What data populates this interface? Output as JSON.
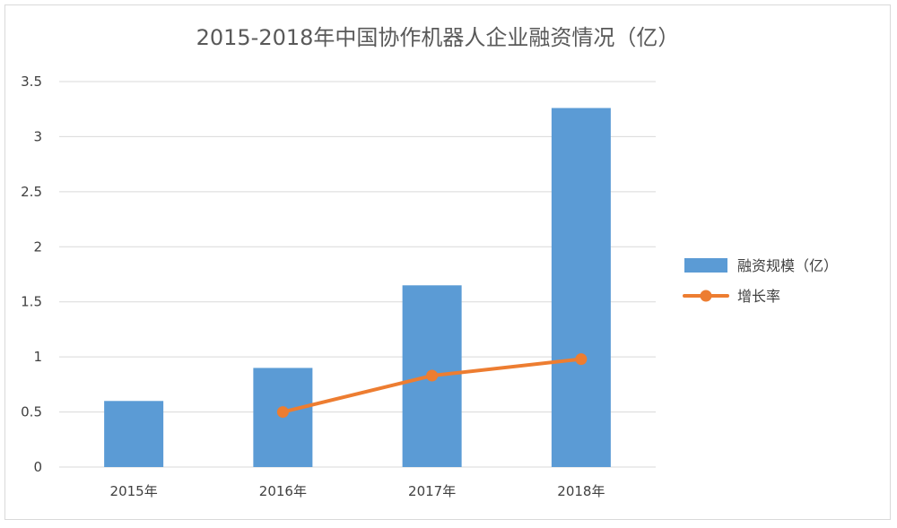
{
  "chart_data": {
    "type": "bar",
    "title": "2015-2018年中国协作机器人企业融资情况（亿）",
    "categories": [
      "2015年",
      "2016年",
      "2017年",
      "2018年"
    ],
    "ylim": [
      0,
      3.5
    ],
    "yticks": [
      0,
      0.5,
      1,
      1.5,
      2,
      2.5,
      3,
      3.5
    ],
    "ytick_labels": [
      "0",
      "0.5",
      "1",
      "1.5",
      "2",
      "2.5",
      "3",
      "3.5"
    ],
    "grid": true,
    "legend_position": "right",
    "series": [
      {
        "name": "融资规模（亿）",
        "type": "bar",
        "color": "#5b9bd5",
        "values": [
          0.6,
          0.9,
          1.65,
          3.26
        ]
      },
      {
        "name": "增长率",
        "type": "line",
        "color": "#ed7d31",
        "values": [
          null,
          0.5,
          0.83,
          0.98
        ]
      }
    ]
  }
}
